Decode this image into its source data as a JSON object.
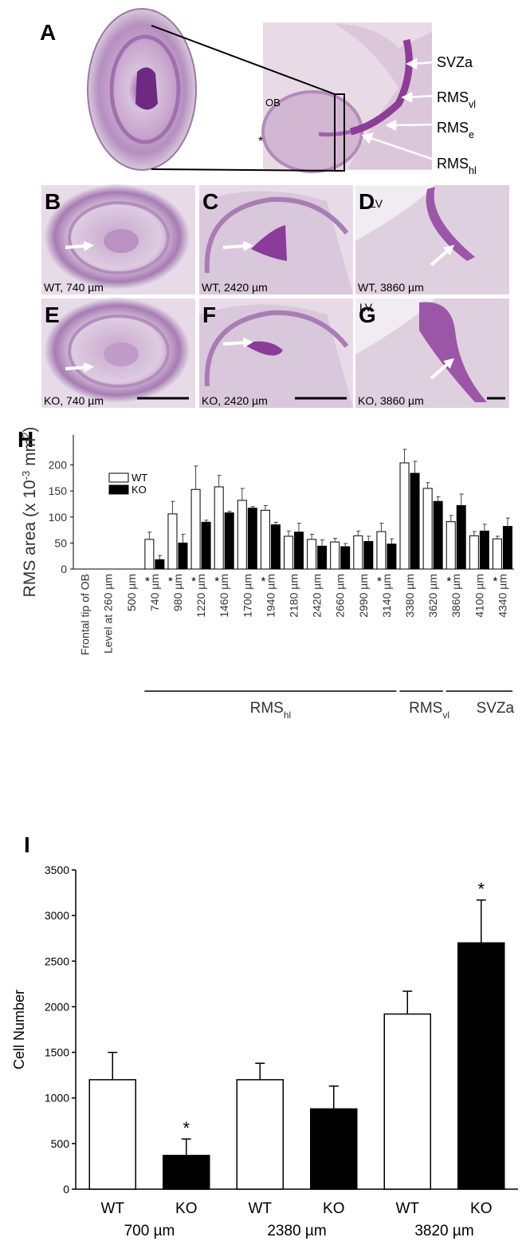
{
  "panel_a": {
    "label": "A",
    "ob": "OB",
    "star": "*",
    "regions": [
      {
        "text": "SVZa"
      },
      {
        "text": "RMS",
        "sub": "vl"
      },
      {
        "text": "RMS",
        "sub": "e"
      },
      {
        "text": "RMS",
        "sub": "hl"
      }
    ]
  },
  "micrographs": [
    {
      "label": "B",
      "caption": "WT, 740 µm"
    },
    {
      "label": "C",
      "caption": "WT, 2420 µm"
    },
    {
      "label": "D",
      "caption": "WT, 3860 µm",
      "lv": "LV"
    },
    {
      "label": "E",
      "caption": "KO, 740 µm"
    },
    {
      "label": "F",
      "caption": "KO, 2420 µm"
    },
    {
      "label": "G",
      "caption": "KO, 3860 µm",
      "lv": "LV"
    }
  ],
  "chart_data": [
    {
      "type": "bar",
      "label": "H",
      "y_label": [
        "RMS area (x 10",
        "-3",
        " mm",
        "2",
        ")"
      ],
      "categories": [
        "Frontal tip of OB",
        "Level at 260 µm",
        "500 µm",
        "740 µm",
        "980 µm",
        "1220 µm",
        "1460 µm",
        "1700 µm",
        "1940 µm",
        "2180 µm",
        "2420 µm",
        "2660 µm",
        "2990 µm",
        "3140 µm",
        "3380 µm",
        "3620 µm",
        "3860 µm",
        "4100 µm",
        "4340 µm"
      ],
      "series": [
        {
          "name": "WT",
          "color": "#ffffff",
          "values": [
            null,
            null,
            null,
            57,
            106,
            153,
            158,
            132,
            113,
            63,
            57,
            52,
            64,
            72,
            204,
            155,
            91,
            64,
            58
          ],
          "errors": [
            null,
            null,
            null,
            14,
            24,
            45,
            22,
            23,
            9,
            10,
            10,
            7,
            9,
            16,
            26,
            11,
            12,
            8,
            5
          ]
        },
        {
          "name": "KO",
          "color": "#000000",
          "values": [
            null,
            null,
            null,
            18,
            50,
            90,
            108,
            117,
            85,
            71,
            44,
            43,
            53,
            48,
            184,
            130,
            122,
            73,
            82
          ],
          "errors": [
            null,
            null,
            null,
            8,
            17,
            4,
            3,
            3,
            5,
            17,
            12,
            6,
            10,
            10,
            23,
            9,
            22,
            13,
            16
          ]
        }
      ],
      "ylim": [
        0,
        250
      ],
      "yticks": [
        0,
        50,
        100,
        150,
        200
      ],
      "legend": "upper left",
      "significance_mark": "*",
      "significant": [
        false,
        false,
        false,
        true,
        true,
        true,
        true,
        false,
        true,
        false,
        false,
        false,
        false,
        true,
        false,
        false,
        true,
        false,
        true
      ],
      "groups": [
        {
          "name": "RMS",
          "sub": "hl",
          "from": "740 µm",
          "to": "3140 µm"
        },
        {
          "name": "RMS",
          "sub": "vl",
          "from": "3380 µm",
          "to": "3620 µm"
        },
        {
          "name": "SVZa",
          "from": "3860 µm",
          "to": "4340 µm"
        }
      ]
    },
    {
      "type": "bar",
      "label": "I",
      "y_label": "Cell Number",
      "categories": [
        "WT",
        "KO",
        "WT",
        "KO",
        "WT",
        "KO"
      ],
      "groups": [
        "700 µm",
        "2380 µm",
        "3820 µm"
      ],
      "values": [
        1200,
        370,
        1200,
        880,
        1920,
        2700
      ],
      "errors": [
        300,
        180,
        180,
        250,
        250,
        470
      ],
      "colors": [
        "#ffffff",
        "#000000",
        "#ffffff",
        "#000000",
        "#ffffff",
        "#000000"
      ],
      "ylim": [
        0,
        3500
      ],
      "yticks": [
        0,
        500,
        1000,
        1500,
        2000,
        2500,
        3000,
        3500
      ],
      "significance_mark": "*",
      "significant": [
        false,
        true,
        false,
        false,
        false,
        true
      ]
    }
  ]
}
